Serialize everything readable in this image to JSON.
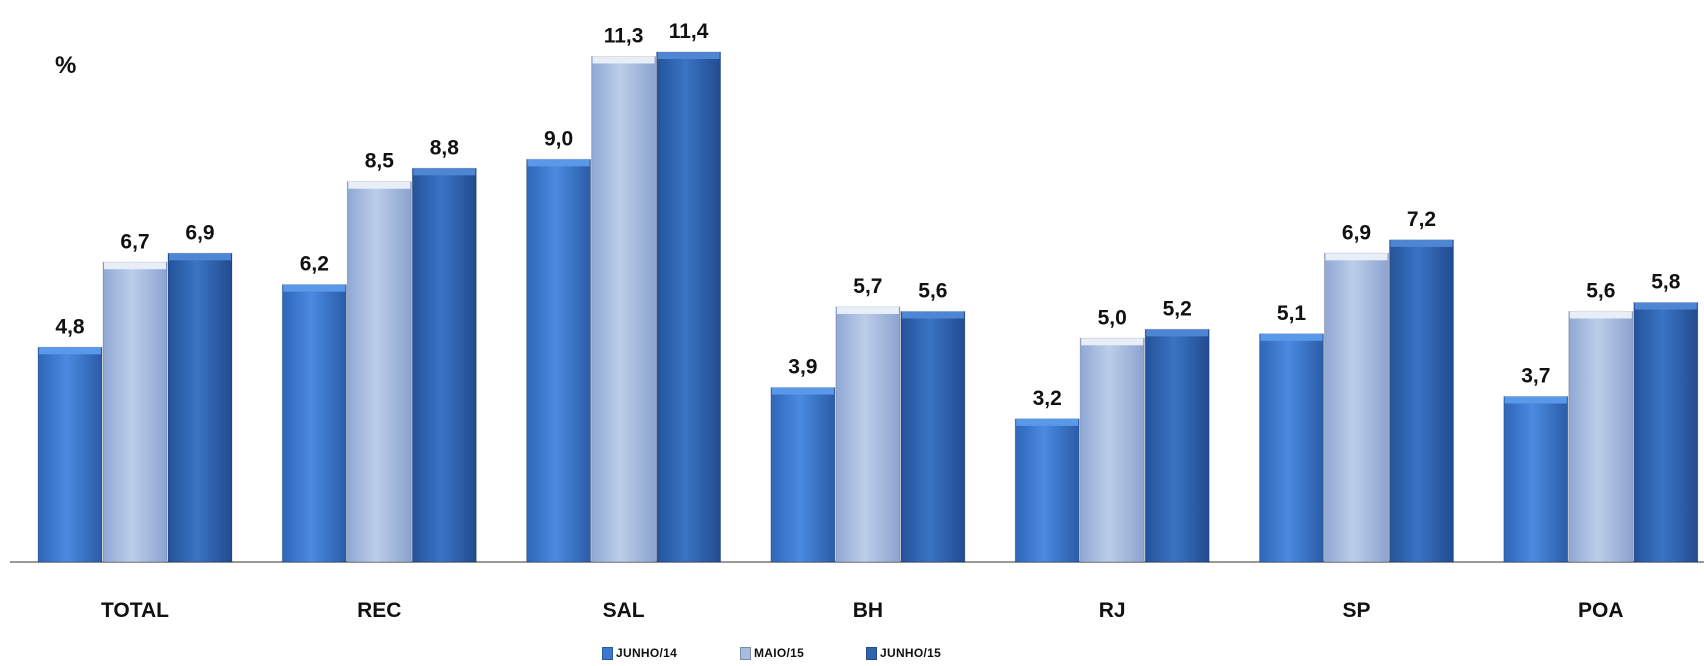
{
  "chart_data": {
    "type": "bar",
    "unit_label": "%",
    "categories": [
      "TOTAL",
      "REC",
      "SAL",
      "BH",
      "RJ",
      "SP",
      "POA"
    ],
    "series": [
      {
        "name": "JUNHO/14",
        "values": [
          4.8,
          6.2,
          9.0,
          3.9,
          3.2,
          5.1,
          3.7
        ],
        "color": "#3a79cf"
      },
      {
        "name": "MAIO/15",
        "values": [
          6.7,
          8.5,
          11.3,
          5.7,
          5.0,
          6.9,
          5.6
        ],
        "color": "#a7bce0"
      },
      {
        "name": "JUNHO/15",
        "values": [
          6.9,
          8.8,
          11.4,
          5.6,
          5.2,
          7.2,
          5.8
        ],
        "color": "#2f64b0"
      }
    ],
    "data_labels": [
      [
        "4,8",
        "6,2",
        "9,0",
        "3,9",
        "3,2",
        "5,1",
        "3,7"
      ],
      [
        "6,7",
        "8,5",
        "11,3",
        "5,7",
        "5,0",
        "6,9",
        "5,6"
      ],
      [
        "6,9",
        "8,8",
        "11,4",
        "5,6",
        "5,2",
        "7,2",
        "5,8"
      ]
    ],
    "ylim": [
      0,
      11.4
    ],
    "grid": false,
    "legend_position": "bottom-center"
  }
}
